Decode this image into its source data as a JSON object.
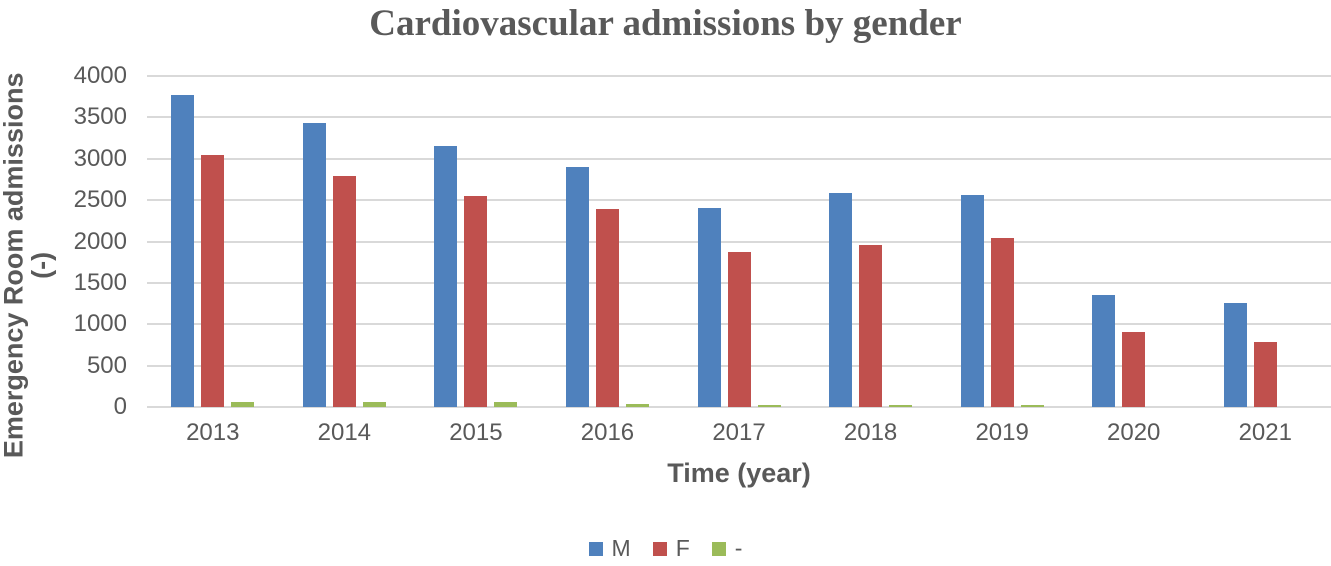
{
  "chart_data": {
    "type": "bar",
    "title": "Cardiovascular admissions by gender",
    "xlabel": "Time (year)",
    "ylabel": "Emergency Room admissions (-)",
    "ylabel_lines": [
      "Emergency Room admissions",
      "(-)"
    ],
    "categories": [
      "2013",
      "2014",
      "2015",
      "2016",
      "2017",
      "2018",
      "2019",
      "2020",
      "2021"
    ],
    "series": [
      {
        "name": "M",
        "color": "#4F81BD",
        "values": [
          3760,
          3420,
          3140,
          2890,
          2400,
          2580,
          2550,
          1350,
          1250
        ]
      },
      {
        "name": "F",
        "color": "#C0504D",
        "values": [
          3040,
          2780,
          2540,
          2390,
          1870,
          1950,
          2040,
          900,
          780
        ]
      },
      {
        "name": "-",
        "color": "#9BBB59",
        "values": [
          60,
          60,
          55,
          40,
          20,
          20,
          20,
          0,
          0
        ]
      }
    ],
    "ylim": [
      0,
      4000
    ],
    "yticks": [
      0,
      500,
      1000,
      1500,
      2000,
      2500,
      3000,
      3500,
      4000
    ],
    "grid": true,
    "legend_position": "bottom"
  },
  "colors": {
    "text": "#595959",
    "gridline": "#D9D9D9",
    "background": "#FFFFFF"
  }
}
